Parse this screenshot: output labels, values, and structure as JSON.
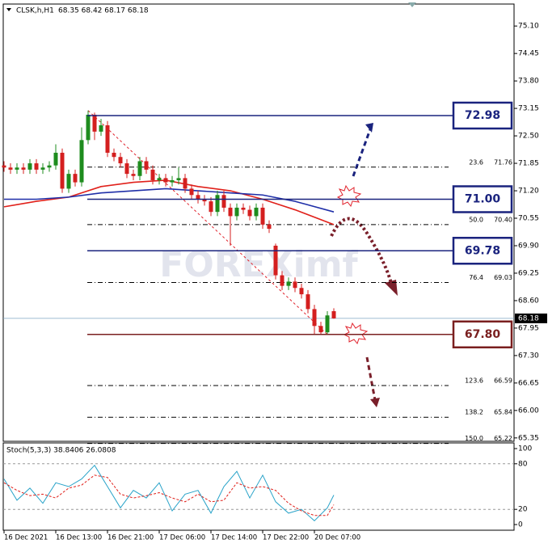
{
  "chart_data": [
    {
      "type": "candlestick",
      "title": "CLSK,h,H1",
      "subtitle": "68.35 68.42 68.17 68.18",
      "watermark": "FOREXimf",
      "categories": [
        "16 Dec 2021",
        null,
        null,
        null,
        null,
        null,
        null,
        null,
        "16 Dec 13:00",
        null,
        null,
        null,
        null,
        null,
        null,
        null,
        "16 Dec 21:00",
        null,
        null,
        null,
        null,
        null,
        null,
        null,
        "17 Dec 06:00",
        null,
        null,
        null,
        null,
        null,
        null,
        null,
        "17 Dec 14:00",
        null,
        null,
        null,
        null,
        null,
        null,
        null,
        "17 Dec 22:00",
        null,
        null,
        null,
        null,
        null,
        null,
        null,
        "20 Dec 07:00",
        null,
        null,
        null
      ],
      "open": [
        71.8,
        71.75,
        71.7,
        71.75,
        71.7,
        71.85,
        71.7,
        71.75,
        71.8,
        72.1,
        71.25,
        71.6,
        71.4,
        72.4,
        73.0,
        72.6,
        72.75,
        72.1,
        72.0,
        71.85,
        71.6,
        71.55,
        71.9,
        71.7,
        71.45,
        71.5,
        71.4,
        71.45,
        71.5,
        71.25,
        71.1,
        71.0,
        70.95,
        70.7,
        71.1,
        70.8,
        70.6,
        70.8,
        70.75,
        70.6,
        70.8,
        70.4,
        69.9,
        69.2,
        68.95,
        69.05,
        68.9,
        68.75,
        68.4,
        68.0,
        67.85,
        68.35
      ],
      "high": [
        71.9,
        71.85,
        71.85,
        71.85,
        71.95,
        71.95,
        71.85,
        71.9,
        72.3,
        72.2,
        71.7,
        71.7,
        72.7,
        73.1,
        73.05,
        72.9,
        72.85,
        72.2,
        72.1,
        71.95,
        71.7,
        72.0,
        72.0,
        71.8,
        71.6,
        71.6,
        71.55,
        71.75,
        71.6,
        71.35,
        71.2,
        71.1,
        71.05,
        71.2,
        71.2,
        70.9,
        70.9,
        70.9,
        70.85,
        70.9,
        70.9,
        70.5,
        69.95,
        69.3,
        69.15,
        69.15,
        69.0,
        68.85,
        68.5,
        68.1,
        68.35,
        68.42
      ],
      "low": [
        71.65,
        71.6,
        71.6,
        71.6,
        71.6,
        71.6,
        71.6,
        71.65,
        71.7,
        71.15,
        71.15,
        71.3,
        71.3,
        72.3,
        72.4,
        72.5,
        72.0,
        71.9,
        71.75,
        71.5,
        71.45,
        71.45,
        71.6,
        71.35,
        71.35,
        71.3,
        71.3,
        71.35,
        71.15,
        71.0,
        70.9,
        70.85,
        70.6,
        70.6,
        70.7,
        69.9,
        70.5,
        70.65,
        70.5,
        70.5,
        70.3,
        70.2,
        69.1,
        68.85,
        68.85,
        68.8,
        68.65,
        68.3,
        67.8,
        67.8,
        67.8,
        68.17
      ],
      "close": [
        71.75,
        71.7,
        71.75,
        71.7,
        71.85,
        71.7,
        71.75,
        71.8,
        72.1,
        71.25,
        71.6,
        71.4,
        72.4,
        73.0,
        72.6,
        72.75,
        72.1,
        72.0,
        71.85,
        71.6,
        71.55,
        71.9,
        71.7,
        71.45,
        71.5,
        71.4,
        71.45,
        71.5,
        71.25,
        71.1,
        71.0,
        70.95,
        70.7,
        71.1,
        70.8,
        70.6,
        70.8,
        70.75,
        70.6,
        70.8,
        70.4,
        70.3,
        69.2,
        68.95,
        69.05,
        68.9,
        68.75,
        68.4,
        68.0,
        67.85,
        68.25,
        68.18
      ],
      "up_color": "#1e8c1e",
      "down_color": "#d41f1f",
      "series": [
        {
          "color": "#e0201a",
          "x": [
            0,
            5,
            10,
            15,
            20,
            25,
            30,
            35,
            40,
            45,
            51
          ],
          "values": [
            70.82,
            70.95,
            71.05,
            71.3,
            71.4,
            71.45,
            71.3,
            71.2,
            71.0,
            70.75,
            70.4
          ]
        },
        {
          "color": "#1f2fa8",
          "x": [
            0,
            5,
            10,
            15,
            20,
            25,
            30,
            35,
            40,
            45,
            51
          ],
          "values": [
            71.0,
            71.0,
            71.05,
            71.15,
            71.2,
            71.25,
            71.2,
            71.15,
            71.1,
            70.95,
            70.7
          ]
        }
      ],
      "ylim": [
        65.27,
        75.62
      ],
      "yticks": [
        {
          "value": 75.1,
          "label": "75.10"
        },
        {
          "value": 74.45,
          "label": "74.45"
        },
        {
          "value": 73.8,
          "label": "73.80"
        },
        {
          "value": 73.15,
          "label": "73.15"
        },
        {
          "value": 72.5,
          "label": "72.50"
        },
        {
          "value": 71.85,
          "label": "71.85"
        },
        {
          "value": 71.2,
          "label": "71.20"
        },
        {
          "value": 70.55,
          "label": "70.55"
        },
        {
          "value": 69.9,
          "label": "69.90"
        },
        {
          "value": 69.25,
          "label": "69.25"
        },
        {
          "value": 68.6,
          "label": "68.60"
        },
        {
          "value": 67.95,
          "label": "67.95"
        },
        {
          "value": 67.3,
          "label": "67.30"
        },
        {
          "value": 66.65,
          "label": "66.65"
        },
        {
          "value": 66.0,
          "label": "66.00"
        },
        {
          "value": 65.35,
          "label": "65.35"
        }
      ],
      "levels": {
        "values": [
          72.98,
          71.0,
          69.78,
          67.8
        ],
        "value_labels": [
          "72.98",
          "71.00",
          "69.78",
          "67.80"
        ],
        "colors": [
          "#1a237e",
          "#1a237e",
          "#1a237e",
          "#7a1f1f"
        ]
      },
      "fib_levels": {
        "labels": [
          "23.6",
          "50.0",
          "76.4",
          "123.6",
          "138.2",
          "150.0"
        ],
        "values": [
          71.76,
          70.4,
          69.03,
          66.59,
          65.84,
          65.22
        ],
        "value_labels": [
          "71.76",
          "70.40",
          "69.03",
          "66.59",
          "65.84",
          "65.22"
        ]
      },
      "current_price": {
        "value": 68.18,
        "label": "68.18"
      }
    },
    {
      "type": "line",
      "title": "Stoch(5,3,3) 38.8406 26.0808",
      "x": [
        0,
        2,
        4,
        6,
        8,
        10,
        12,
        14,
        16,
        18,
        20,
        22,
        24,
        26,
        28,
        30,
        32,
        34,
        36,
        38,
        40,
        42,
        44,
        46,
        48,
        50,
        51
      ],
      "series": [
        {
          "color": "#29a3c9",
          "dash": false,
          "values": [
            60,
            32,
            48,
            28,
            55,
            50,
            60,
            78,
            50,
            22,
            45,
            35,
            55,
            18,
            40,
            45,
            15,
            50,
            70,
            35,
            65,
            30,
            15,
            20,
            5,
            22,
            38.84
          ]
        },
        {
          "color": "#e0201a",
          "dash": true,
          "values": [
            55,
            45,
            38,
            40,
            35,
            48,
            52,
            65,
            62,
            40,
            35,
            38,
            42,
            35,
            30,
            40,
            30,
            32,
            55,
            48,
            50,
            45,
            28,
            18,
            12,
            12,
            26.08
          ]
        }
      ],
      "ylim": [
        0,
        100
      ],
      "yticks": [
        0,
        20,
        80,
        100
      ]
    }
  ]
}
